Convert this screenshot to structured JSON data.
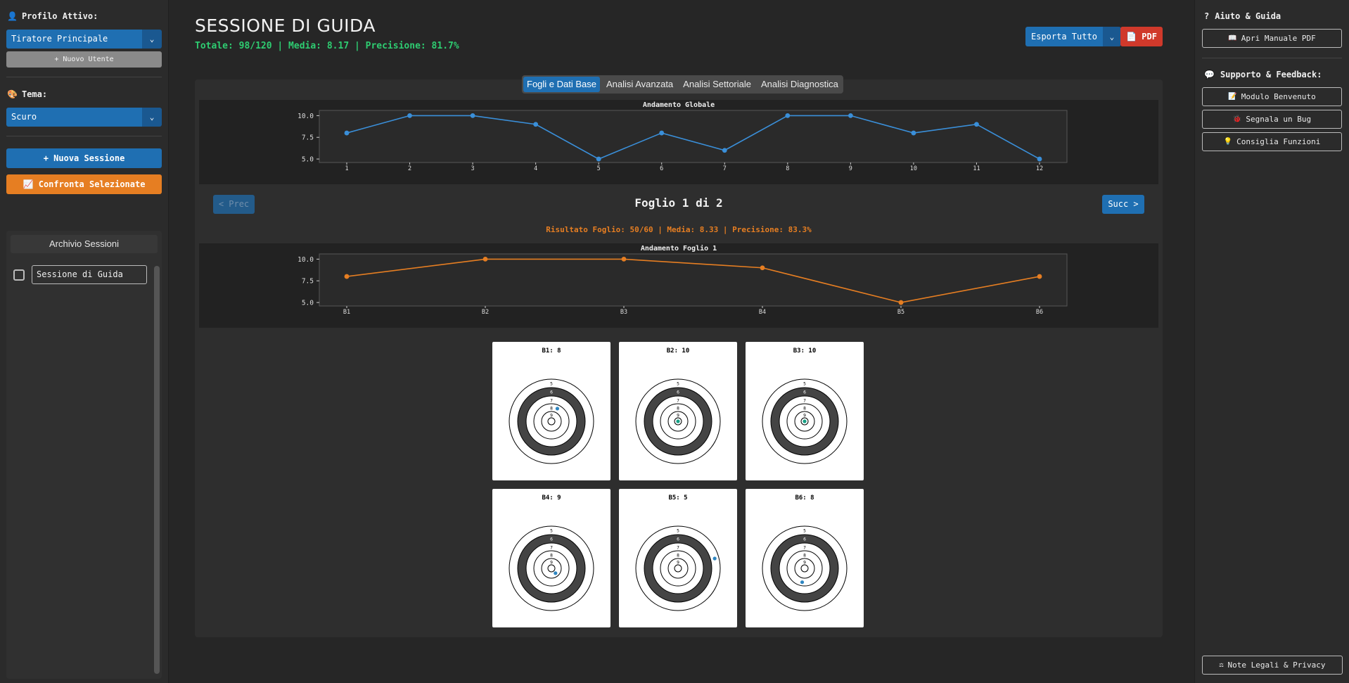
{
  "left": {
    "profile_label": "Profilo Attivo:",
    "profile_value": "Tiratore Principale",
    "new_user": "+ Nuovo Utente",
    "theme_label": "Tema:",
    "theme_value": "Scuro",
    "new_session": "+ Nuova Sessione",
    "compare": "Confronta Selezionate",
    "archive_title": "Archivio Sessioni",
    "archive_items": [
      "Sessione di Guida"
    ]
  },
  "header": {
    "title": "SESSIONE DI GUIDA",
    "stats": "Totale: 98/120 | Media: 8.17 | Precisione: 81.7%",
    "export": "Esporta Tutto",
    "pdf": "PDF"
  },
  "tabs": [
    "Fogli e Dati Base",
    "Analisi Avanzata",
    "Analisi Settoriale",
    "Analisi Diagnostica"
  ],
  "nav": {
    "prev": "< Prec",
    "next": "Succ >",
    "sheet_title": "Foglio 1 di 2",
    "sheet_stats": "Risultato Foglio: 50/60 | Media: 8.33 | Precisione: 83.3%"
  },
  "chart_data": [
    {
      "type": "line",
      "title": "Andamento Globale",
      "x": [
        "1",
        "2",
        "3",
        "4",
        "5",
        "6",
        "7",
        "8",
        "9",
        "10",
        "11",
        "12"
      ],
      "series": [
        {
          "values": [
            8,
            10,
            10,
            9,
            5,
            8,
            6,
            10,
            10,
            8,
            9,
            5
          ],
          "color": "#3a8fd9"
        }
      ],
      "yticks": [
        "10.0",
        "7.5",
        "5.0"
      ],
      "ylim": [
        4.6,
        10.6
      ]
    },
    {
      "type": "line",
      "title": "Andamento Foglio 1",
      "x": [
        "B1",
        "B2",
        "B3",
        "B4",
        "B5",
        "B6"
      ],
      "series": [
        {
          "values": [
            8,
            10,
            10,
            9,
            5,
            8
          ],
          "color": "#e67e22"
        }
      ],
      "yticks": [
        "10.0",
        "7.5",
        "5.0"
      ],
      "ylim": [
        4.6,
        10.6
      ]
    }
  ],
  "targets": [
    {
      "label": "B1: 8",
      "score": 8,
      "angle": 25
    },
    {
      "label": "B2: 10",
      "score": 10,
      "angle": 0
    },
    {
      "label": "B3: 10",
      "score": 10,
      "angle": 200
    },
    {
      "label": "B4: 9",
      "score": 9,
      "angle": 140
    },
    {
      "label": "B5: 5",
      "score": 5,
      "angle": 75
    },
    {
      "label": "B6: 8",
      "score": 8,
      "angle": 190
    }
  ],
  "ring_labels": [
    "5",
    "6",
    "7",
    "8",
    "9"
  ],
  "right": {
    "help_label": "Aiuto & Guida",
    "manual": "Apri Manuale PDF",
    "support_label": "Supporto & Feedback:",
    "welcome": "Modulo Benvenuto",
    "bug": "Segnala un Bug",
    "suggest": "Consiglia Funzioni",
    "legal": "Note Legali & Privacy"
  }
}
